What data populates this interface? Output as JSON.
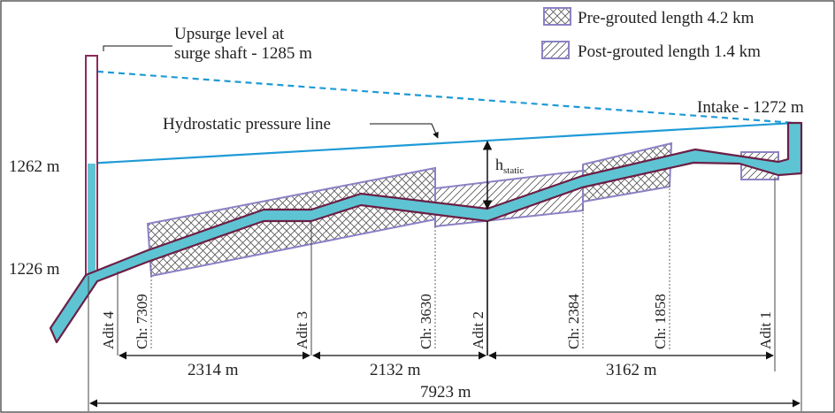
{
  "legend": {
    "pre_grouted": "Pre-grouted length 4.2 km",
    "post_grouted": "Post-grouted length 1.4 km"
  },
  "annotations": {
    "upsurge_line1": "Upsurge level at",
    "upsurge_line2": "surge shaft - 1285 m",
    "hydrostatic": "Hydrostatic pressure line",
    "intake": "Intake - 1272 m",
    "level_1262": "1262 m",
    "level_1226": "1226 m",
    "h_main": "h",
    "h_sub": "static"
  },
  "stations": {
    "adit4": "Adit 4",
    "ch7309": "Ch: 7309",
    "adit3": "Adit 3",
    "ch3630": "Ch: 3630",
    "adit2": "Adit 2",
    "ch2384": "Ch: 2384",
    "ch1858": "Ch: 1858",
    "adit1": "Adit 1"
  },
  "dimensions": {
    "d1": "2314 m",
    "d2": "2132 m",
    "d3": "3162 m",
    "total": "7923 m"
  },
  "colors": {
    "tunnel_fill": "#5ec4d3",
    "tunnel_edge": "#6b1f45",
    "box_edge": "#8a82c4",
    "hydro_line": "#1f9ad6",
    "shaft_edge": "#8b2a5a"
  }
}
